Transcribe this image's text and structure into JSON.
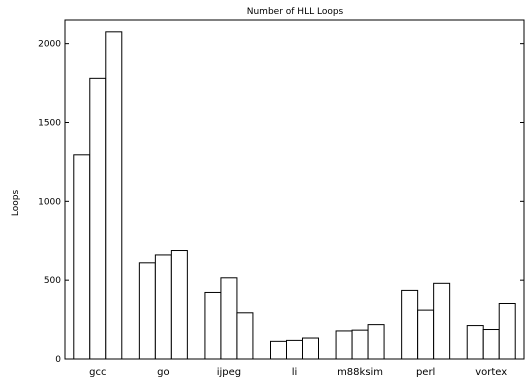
{
  "chart_data": {
    "type": "bar",
    "title": "Number of HLL Loops",
    "xlabel": "",
    "ylabel": "Loops",
    "ylim": [
      0,
      2150
    ],
    "yticks": [
      0,
      500,
      1000,
      1500,
      2000
    ],
    "grid": false,
    "categories": [
      "gcc",
      "go",
      "ijpeg",
      "li",
      "m88ksim",
      "perl",
      "vortex"
    ],
    "series": [
      {
        "values": [
          1295,
          610,
          422,
          112,
          178,
          435,
          212
        ]
      },
      {
        "values": [
          1780,
          660,
          515,
          118,
          183,
          310,
          187
        ]
      },
      {
        "values": [
          2075,
          688,
          293,
          133,
          218,
          480,
          352
        ]
      }
    ]
  }
}
